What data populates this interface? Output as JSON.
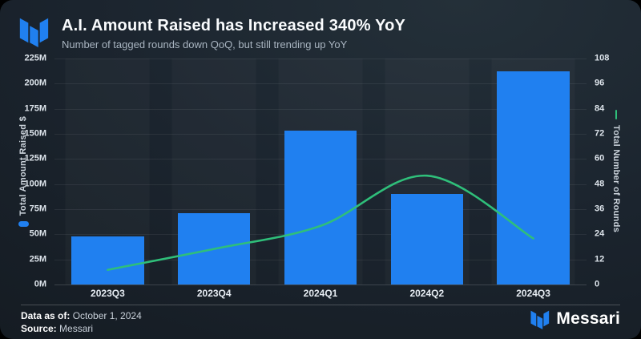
{
  "header": {
    "title": "A.I. Amount Raised has Increased 340% YoY",
    "subtitle": "Number of tagged rounds down QoQ, but still trending up YoY"
  },
  "chart_data": {
    "type": "bar",
    "categories": [
      "2023Q3",
      "2023Q4",
      "2024Q1",
      "2024Q2",
      "2024Q3"
    ],
    "series": [
      {
        "name": "Total Amount Raised $",
        "type": "bar",
        "axis": "left",
        "unit": "M USD",
        "values": [
          48,
          71,
          153,
          90,
          212
        ],
        "color": "#2080f0"
      },
      {
        "name": "Total Number of Rounds",
        "type": "line",
        "axis": "right",
        "values": [
          7,
          17,
          28,
          52,
          22
        ],
        "color": "#2fbf7a"
      }
    ],
    "title": "A.I. Amount Raised has Increased 340% YoY",
    "subtitle": "Number of tagged rounds down QoQ, but still trending up YoY",
    "left_axis": {
      "label": "Total Amount Raised $",
      "min": 0,
      "max": 225,
      "ticks": [
        "225M",
        "200M",
        "175M",
        "150M",
        "125M",
        "100M",
        "75M",
        "50M",
        "25M",
        "0M"
      ]
    },
    "right_axis": {
      "label": "Total Number of Rounds",
      "min": 0,
      "max": 108,
      "ticks": [
        "108",
        "96",
        "84",
        "72",
        "60",
        "48",
        "36",
        "24",
        "12",
        "0"
      ]
    },
    "grid": true,
    "legend_position": "axis-titles"
  },
  "footer": {
    "data_as_of_label": "Data as of:",
    "data_as_of_value": " October 1, 2024",
    "source_label": "Source:",
    "source_value": " Messari",
    "brand": "Messari"
  },
  "colors": {
    "bar_blue": "#2080f0",
    "line_green": "#2fbf7a",
    "card_bg_top": "#243039",
    "card_bg_bottom": "#13191f",
    "title_text": "#fafcfe",
    "subtitle_text": "#a9b5c1"
  }
}
